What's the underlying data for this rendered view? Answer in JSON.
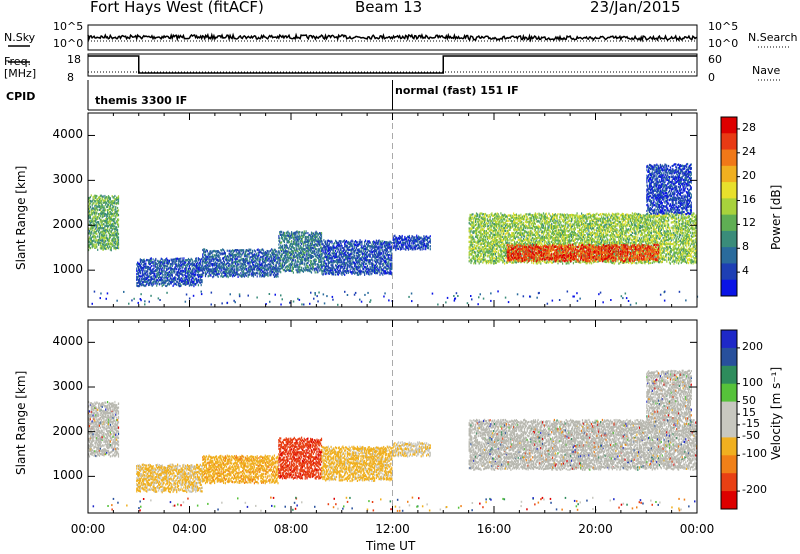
{
  "header": {
    "station": "Fort Hays West (fitACF)",
    "beam": "Beam 13",
    "date": "23/Jan/2015"
  },
  "top_panels": {
    "nsky_label": "N.Sky",
    "nsky_ticks": [
      "10^5",
      "10^0"
    ],
    "nsearch_label": "N.Search",
    "nsearch_ticks": [
      "10^5",
      "10^0"
    ],
    "freq_label": "Freq.",
    "freq_unit": "[MHz]",
    "freq_ticks": [
      "18",
      "8"
    ],
    "nave_label": "Nave",
    "nave_ticks": [
      "60",
      "0"
    ],
    "cpid_label": "CPID",
    "cpid_segments": [
      "themis 3300 IF",
      "normal (fast) 151 IF"
    ]
  },
  "colors": {
    "power_scale": [
      "#0a14e6",
      "#1e3fb4",
      "#2a6b9c",
      "#3a8c7a",
      "#5fae54",
      "#a8d23c",
      "#e8e02c",
      "#f0b020",
      "#f07818",
      "#e83a14",
      "#dd0000"
    ],
    "velocity_scale": [
      "#1e28c8",
      "#28509c",
      "#2e8c5c",
      "#56c23a",
      "#c8c8c0",
      "#c8c8c0",
      "#f0b020",
      "#f08018",
      "#e84014",
      "#dd0000"
    ],
    "ground_scatter": "#b8b8b0"
  },
  "chart_data": [
    {
      "type": "heatmap",
      "name": "power",
      "xlabel": "",
      "ylabel": "Slant Range [km]",
      "x_ticks": [
        "00:00",
        "04:00",
        "08:00",
        "12:00",
        "16:00",
        "20:00",
        "00:00"
      ],
      "y_ticks": [
        1000,
        2000,
        3000,
        4000
      ],
      "ylim": [
        180,
        4500
      ],
      "xlim_hours": [
        0,
        24
      ],
      "colorbar_label": "Power [dB]",
      "colorbar_ticks": [
        4,
        8,
        12,
        16,
        20,
        24,
        28
      ],
      "colorbar_range": [
        0,
        30
      ],
      "echo_regions": [
        {
          "t_start": 0.0,
          "t_end": 1.2,
          "r_low": 1500,
          "r_high": 2700,
          "level": 12
        },
        {
          "t_start": 1.9,
          "t_end": 4.5,
          "r_low": 700,
          "r_high": 1300,
          "level": 5
        },
        {
          "t_start": 4.5,
          "t_end": 7.5,
          "r_low": 900,
          "r_high": 1500,
          "level": 6
        },
        {
          "t_start": 7.5,
          "t_end": 9.2,
          "r_low": 1000,
          "r_high": 1900,
          "level": 8
        },
        {
          "t_start": 9.2,
          "t_end": 12.0,
          "r_low": 950,
          "r_high": 1700,
          "level": 5
        },
        {
          "t_start": 12.0,
          "t_end": 13.5,
          "r_low": 1500,
          "r_high": 1800,
          "level": 4
        },
        {
          "t_start": 15.0,
          "t_end": 24.0,
          "r_low": 1200,
          "r_high": 2300,
          "level": 14
        },
        {
          "t_start": 16.5,
          "t_end": 22.5,
          "r_low": 1250,
          "r_high": 1600,
          "level": 26
        },
        {
          "t_start": 22.0,
          "t_end": 23.8,
          "r_low": 2300,
          "r_high": 3400,
          "level": 4
        }
      ]
    },
    {
      "type": "heatmap",
      "name": "velocity",
      "xlabel": "Time UT",
      "ylabel": "Slant Range [km]",
      "x_ticks": [
        "00:00",
        "04:00",
        "08:00",
        "12:00",
        "16:00",
        "20:00",
        "00:00"
      ],
      "y_ticks": [
        1000,
        2000,
        3000,
        4000
      ],
      "ylim": [
        180,
        4500
      ],
      "xlim_hours": [
        0,
        24
      ],
      "colorbar_label": "Velocity [m s⁻¹]",
      "colorbar_ticks": [
        200,
        100,
        50,
        15,
        -15,
        -50,
        -100,
        -200
      ],
      "colorbar_range": [
        -250,
        250
      ],
      "echo_regions": [
        {
          "t_start": 0.0,
          "t_end": 1.2,
          "r_low": 1500,
          "r_high": 2700,
          "value": 0
        },
        {
          "t_start": 1.9,
          "t_end": 4.5,
          "r_low": 700,
          "r_high": 1300,
          "value": -60
        },
        {
          "t_start": 4.5,
          "t_end": 7.5,
          "r_low": 900,
          "r_high": 1500,
          "value": -80
        },
        {
          "t_start": 7.5,
          "t_end": 9.2,
          "r_low": 1000,
          "r_high": 1900,
          "value": -180
        },
        {
          "t_start": 9.2,
          "t_end": 12.0,
          "r_low": 950,
          "r_high": 1700,
          "value": -70
        },
        {
          "t_start": 12.0,
          "t_end": 13.5,
          "r_low": 1500,
          "r_high": 1800,
          "value": -40
        },
        {
          "t_start": 15.0,
          "t_end": 24.0,
          "r_low": 1200,
          "r_high": 2300,
          "value": 0
        },
        {
          "t_start": 22.0,
          "t_end": 23.8,
          "r_low": 2300,
          "r_high": 3400,
          "value": 0
        }
      ]
    }
  ]
}
